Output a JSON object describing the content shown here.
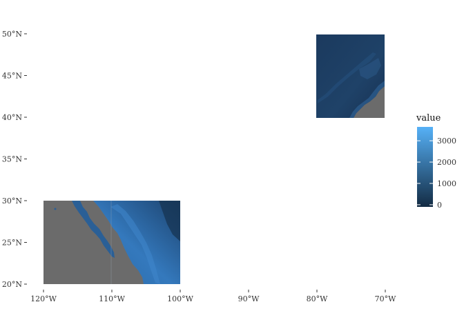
{
  "map": {
    "title": "",
    "x_ticks": [
      {
        "value": -120,
        "label": "120°W"
      },
      {
        "value": -110,
        "label": "110°W"
      },
      {
        "value": -100,
        "label": "100°W"
      },
      {
        "value": -90,
        "label": "90°W"
      },
      {
        "value": -80,
        "label": "80°W"
      },
      {
        "value": -70,
        "label": "70°W"
      }
    ],
    "y_ticks": [
      {
        "value": 20,
        "label": "20°N"
      },
      {
        "value": 25,
        "label": "25°N"
      },
      {
        "value": 30,
        "label": "30°N"
      },
      {
        "value": 35,
        "label": "35°N"
      },
      {
        "value": 40,
        "label": "40°N"
      },
      {
        "value": 45,
        "label": "45°N"
      },
      {
        "value": 50,
        "label": "50°N"
      }
    ],
    "x_range": [
      -120,
      -70
    ],
    "y_range": [
      20,
      50
    ],
    "legend": {
      "title": "value",
      "ticks": [
        {
          "value": 0,
          "label": "0"
        },
        {
          "value": 1000,
          "label": "1000"
        },
        {
          "value": 2000,
          "label": "2000"
        },
        {
          "value": 3000,
          "label": "3000"
        }
      ],
      "range": [
        -100,
        3650
      ],
      "color_low": "#132b43",
      "color_high": "#56b1f7",
      "placement": "right"
    },
    "rasters": [
      {
        "name": "mexico-raster",
        "lon": [
          -120,
          -100
        ],
        "lat": [
          20,
          30
        ]
      },
      {
        "name": "northeast-raster",
        "lon": [
          -80,
          -70
        ],
        "lat": [
          40,
          50
        ]
      }
    ],
    "colors": {
      "no_data": "#6b6b6b",
      "land_low": "#1b3a5c",
      "land_high": "#3a7bbf"
    }
  }
}
